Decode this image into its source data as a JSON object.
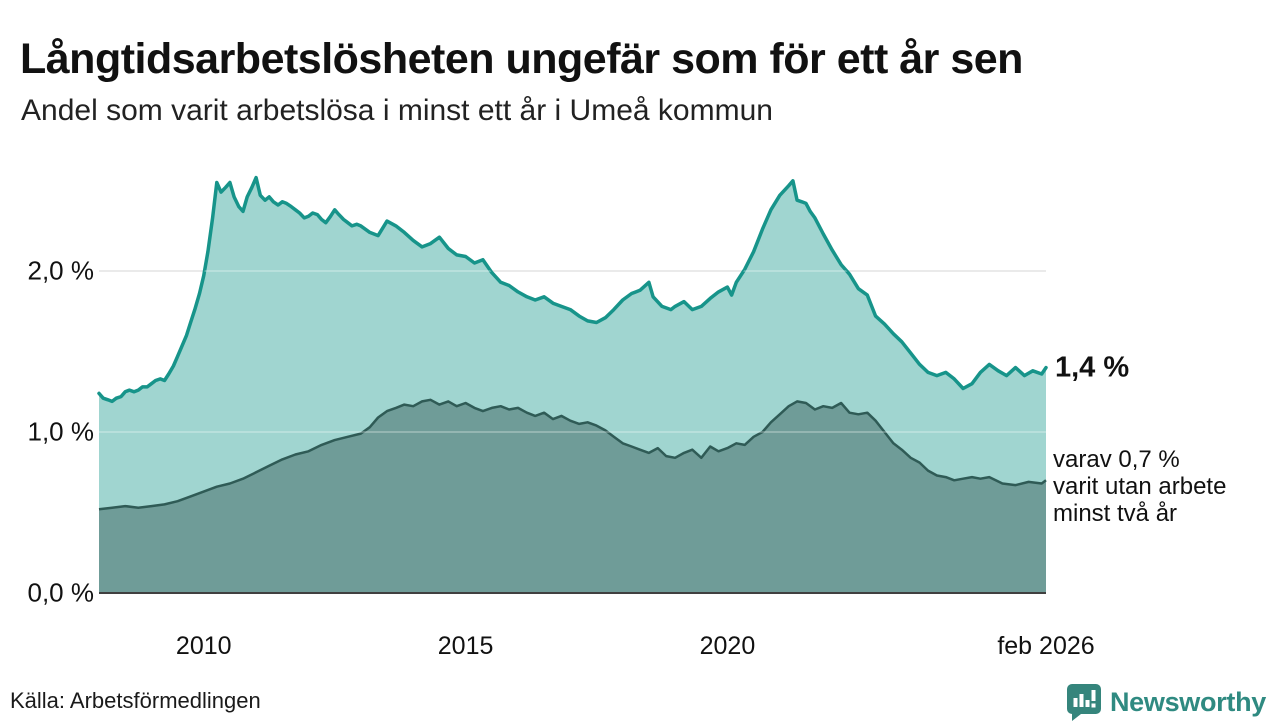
{
  "header": {
    "title": "Långtidsarbetslösheten ungefär som för ett år sen",
    "subtitle": "Andel som varit arbetslösa i minst ett år i Umeå kommun"
  },
  "annotations": {
    "latest_one_year": "1,4 %",
    "secondary": [
      "varav 0,7 %",
      "varit utan arbete",
      "minst två år"
    ]
  },
  "footer": {
    "source": "Källa: Arbetsförmedlingen",
    "brand": "Newsworthy"
  },
  "chart_data": {
    "type": "area",
    "title": "Långtidsarbetslösheten ungefär som för ett år sen",
    "subtitle": "Andel som varit arbetslösa i minst ett år i Umeå kommun",
    "x_domain": [
      2008.0,
      2026.083
    ],
    "ylim": [
      0,
      2.7
    ],
    "grid": "horizontal",
    "x_ticks": [
      {
        "t": 2010,
        "label": "2010"
      },
      {
        "t": 2015,
        "label": "2015"
      },
      {
        "t": 2020,
        "label": "2020"
      },
      {
        "t": 2026.083,
        "label": "feb 2026"
      }
    ],
    "y_ticks": [
      {
        "v": 0,
        "label": "0,0 %"
      },
      {
        "v": 1,
        "label": "1,0 %"
      },
      {
        "v": 2,
        "label": "2,0 %"
      }
    ],
    "colors": {
      "line1": "#17948a",
      "area1": "#a0d5d0",
      "line2": "#2f5b56",
      "area2": "#6f9c98",
      "grid": "#e3e3e3",
      "grid_overlay": "rgba(255,255,255,0.35)",
      "baseline": "#404040",
      "brand": "#2f8a81"
    },
    "series": [
      {
        "name": "arbetslösa minst ett år",
        "latest_label": "1,4 %",
        "points": [
          [
            2008.0,
            1.24
          ],
          [
            2008.08,
            1.21
          ],
          [
            2008.17,
            1.2
          ],
          [
            2008.25,
            1.19
          ],
          [
            2008.33,
            1.21
          ],
          [
            2008.42,
            1.22
          ],
          [
            2008.5,
            1.25
          ],
          [
            2008.58,
            1.26
          ],
          [
            2008.67,
            1.25
          ],
          [
            2008.75,
            1.26
          ],
          [
            2008.83,
            1.28
          ],
          [
            2008.92,
            1.28
          ],
          [
            2009.0,
            1.3
          ],
          [
            2009.08,
            1.32
          ],
          [
            2009.17,
            1.33
          ],
          [
            2009.25,
            1.32
          ],
          [
            2009.33,
            1.36
          ],
          [
            2009.42,
            1.41
          ],
          [
            2009.5,
            1.47
          ],
          [
            2009.58,
            1.53
          ],
          [
            2009.67,
            1.6
          ],
          [
            2009.75,
            1.68
          ],
          [
            2009.83,
            1.76
          ],
          [
            2009.92,
            1.86
          ],
          [
            2010.0,
            1.97
          ],
          [
            2010.08,
            2.12
          ],
          [
            2010.17,
            2.33
          ],
          [
            2010.25,
            2.55
          ],
          [
            2010.33,
            2.49
          ],
          [
            2010.42,
            2.52
          ],
          [
            2010.5,
            2.55
          ],
          [
            2010.58,
            2.46
          ],
          [
            2010.67,
            2.4
          ],
          [
            2010.75,
            2.37
          ],
          [
            2010.83,
            2.46
          ],
          [
            2010.92,
            2.52
          ],
          [
            2011.0,
            2.58
          ],
          [
            2011.08,
            2.47
          ],
          [
            2011.17,
            2.44
          ],
          [
            2011.25,
            2.46
          ],
          [
            2011.33,
            2.43
          ],
          [
            2011.42,
            2.41
          ],
          [
            2011.5,
            2.43
          ],
          [
            2011.58,
            2.42
          ],
          [
            2011.67,
            2.4
          ],
          [
            2011.75,
            2.38
          ],
          [
            2011.83,
            2.36
          ],
          [
            2011.92,
            2.33
          ],
          [
            2012.0,
            2.34
          ],
          [
            2012.08,
            2.36
          ],
          [
            2012.17,
            2.35
          ],
          [
            2012.25,
            2.32
          ],
          [
            2012.33,
            2.3
          ],
          [
            2012.42,
            2.34
          ],
          [
            2012.5,
            2.38
          ],
          [
            2012.58,
            2.35
          ],
          [
            2012.67,
            2.32
          ],
          [
            2012.75,
            2.3
          ],
          [
            2012.83,
            2.28
          ],
          [
            2012.92,
            2.29
          ],
          [
            2013.0,
            2.28
          ],
          [
            2013.17,
            2.24
          ],
          [
            2013.33,
            2.22
          ],
          [
            2013.5,
            2.31
          ],
          [
            2013.67,
            2.28
          ],
          [
            2013.83,
            2.24
          ],
          [
            2014.0,
            2.19
          ],
          [
            2014.17,
            2.15
          ],
          [
            2014.33,
            2.17
          ],
          [
            2014.5,
            2.21
          ],
          [
            2014.67,
            2.14
          ],
          [
            2014.83,
            2.1
          ],
          [
            2015.0,
            2.09
          ],
          [
            2015.17,
            2.05
          ],
          [
            2015.33,
            2.07
          ],
          [
            2015.5,
            1.99
          ],
          [
            2015.67,
            1.93
          ],
          [
            2015.83,
            1.91
          ],
          [
            2016.0,
            1.87
          ],
          [
            2016.17,
            1.84
          ],
          [
            2016.33,
            1.82
          ],
          [
            2016.5,
            1.84
          ],
          [
            2016.67,
            1.8
          ],
          [
            2016.83,
            1.78
          ],
          [
            2017.0,
            1.76
          ],
          [
            2017.17,
            1.72
          ],
          [
            2017.33,
            1.69
          ],
          [
            2017.5,
            1.68
          ],
          [
            2017.67,
            1.71
          ],
          [
            2017.83,
            1.76
          ],
          [
            2018.0,
            1.82
          ],
          [
            2018.17,
            1.86
          ],
          [
            2018.33,
            1.88
          ],
          [
            2018.5,
            1.93
          ],
          [
            2018.58,
            1.84
          ],
          [
            2018.75,
            1.78
          ],
          [
            2018.92,
            1.76
          ],
          [
            2019.0,
            1.78
          ],
          [
            2019.17,
            1.81
          ],
          [
            2019.33,
            1.76
          ],
          [
            2019.5,
            1.78
          ],
          [
            2019.67,
            1.83
          ],
          [
            2019.83,
            1.87
          ],
          [
            2020.0,
            1.9
          ],
          [
            2020.08,
            1.85
          ],
          [
            2020.17,
            1.93
          ],
          [
            2020.33,
            2.01
          ],
          [
            2020.5,
            2.12
          ],
          [
            2020.67,
            2.26
          ],
          [
            2020.83,
            2.38
          ],
          [
            2021.0,
            2.47
          ],
          [
            2021.17,
            2.53
          ],
          [
            2021.25,
            2.56
          ],
          [
            2021.33,
            2.44
          ],
          [
            2021.42,
            2.43
          ],
          [
            2021.5,
            2.42
          ],
          [
            2021.58,
            2.37
          ],
          [
            2021.67,
            2.33
          ],
          [
            2021.83,
            2.23
          ],
          [
            2022.0,
            2.13
          ],
          [
            2022.17,
            2.04
          ],
          [
            2022.33,
            1.98
          ],
          [
            2022.5,
            1.89
          ],
          [
            2022.67,
            1.85
          ],
          [
            2022.83,
            1.72
          ],
          [
            2023.0,
            1.67
          ],
          [
            2023.17,
            1.61
          ],
          [
            2023.33,
            1.56
          ],
          [
            2023.5,
            1.49
          ],
          [
            2023.67,
            1.42
          ],
          [
            2023.83,
            1.37
          ],
          [
            2024.0,
            1.35
          ],
          [
            2024.17,
            1.37
          ],
          [
            2024.33,
            1.33
          ],
          [
            2024.5,
            1.27
          ],
          [
            2024.67,
            1.3
          ],
          [
            2024.83,
            1.37
          ],
          [
            2025.0,
            1.42
          ],
          [
            2025.17,
            1.38
          ],
          [
            2025.33,
            1.35
          ],
          [
            2025.5,
            1.4
          ],
          [
            2025.67,
            1.35
          ],
          [
            2025.83,
            1.38
          ],
          [
            2026.0,
            1.36
          ],
          [
            2026.083,
            1.4
          ]
        ]
      },
      {
        "name": "utan arbete minst två år",
        "latest_label": "0,7 %",
        "points": [
          [
            2008.0,
            0.52
          ],
          [
            2008.25,
            0.53
          ],
          [
            2008.5,
            0.54
          ],
          [
            2008.75,
            0.53
          ],
          [
            2009.0,
            0.54
          ],
          [
            2009.25,
            0.55
          ],
          [
            2009.5,
            0.57
          ],
          [
            2009.75,
            0.6
          ],
          [
            2010.0,
            0.63
          ],
          [
            2010.25,
            0.66
          ],
          [
            2010.5,
            0.68
          ],
          [
            2010.75,
            0.71
          ],
          [
            2011.0,
            0.75
          ],
          [
            2011.25,
            0.79
          ],
          [
            2011.5,
            0.83
          ],
          [
            2011.75,
            0.86
          ],
          [
            2012.0,
            0.88
          ],
          [
            2012.25,
            0.92
          ],
          [
            2012.5,
            0.95
          ],
          [
            2012.75,
            0.97
          ],
          [
            2013.0,
            0.99
          ],
          [
            2013.17,
            1.03
          ],
          [
            2013.33,
            1.09
          ],
          [
            2013.5,
            1.13
          ],
          [
            2013.67,
            1.15
          ],
          [
            2013.83,
            1.17
          ],
          [
            2014.0,
            1.16
          ],
          [
            2014.17,
            1.19
          ],
          [
            2014.33,
            1.2
          ],
          [
            2014.5,
            1.17
          ],
          [
            2014.67,
            1.19
          ],
          [
            2014.83,
            1.16
          ],
          [
            2015.0,
            1.18
          ],
          [
            2015.17,
            1.15
          ],
          [
            2015.33,
            1.13
          ],
          [
            2015.5,
            1.15
          ],
          [
            2015.67,
            1.16
          ],
          [
            2015.83,
            1.14
          ],
          [
            2016.0,
            1.15
          ],
          [
            2016.17,
            1.12
          ],
          [
            2016.33,
            1.1
          ],
          [
            2016.5,
            1.12
          ],
          [
            2016.67,
            1.08
          ],
          [
            2016.83,
            1.1
          ],
          [
            2017.0,
            1.07
          ],
          [
            2017.17,
            1.05
          ],
          [
            2017.33,
            1.06
          ],
          [
            2017.5,
            1.04
          ],
          [
            2017.67,
            1.01
          ],
          [
            2017.83,
            0.97
          ],
          [
            2018.0,
            0.93
          ],
          [
            2018.17,
            0.91
          ],
          [
            2018.33,
            0.89
          ],
          [
            2018.5,
            0.87
          ],
          [
            2018.67,
            0.9
          ],
          [
            2018.83,
            0.85
          ],
          [
            2019.0,
            0.84
          ],
          [
            2019.17,
            0.87
          ],
          [
            2019.33,
            0.89
          ],
          [
            2019.5,
            0.84
          ],
          [
            2019.67,
            0.91
          ],
          [
            2019.83,
            0.88
          ],
          [
            2020.0,
            0.9
          ],
          [
            2020.17,
            0.93
          ],
          [
            2020.33,
            0.92
          ],
          [
            2020.5,
            0.97
          ],
          [
            2020.67,
            1.0
          ],
          [
            2020.83,
            1.06
          ],
          [
            2021.0,
            1.11
          ],
          [
            2021.17,
            1.16
          ],
          [
            2021.33,
            1.19
          ],
          [
            2021.5,
            1.18
          ],
          [
            2021.67,
            1.14
          ],
          [
            2021.83,
            1.16
          ],
          [
            2022.0,
            1.15
          ],
          [
            2022.17,
            1.18
          ],
          [
            2022.33,
            1.12
          ],
          [
            2022.5,
            1.11
          ],
          [
            2022.67,
            1.12
          ],
          [
            2022.83,
            1.07
          ],
          [
            2023.0,
            1.0
          ],
          [
            2023.17,
            0.93
          ],
          [
            2023.33,
            0.89
          ],
          [
            2023.5,
            0.84
          ],
          [
            2023.67,
            0.81
          ],
          [
            2023.83,
            0.76
          ],
          [
            2024.0,
            0.73
          ],
          [
            2024.17,
            0.72
          ],
          [
            2024.33,
            0.7
          ],
          [
            2024.5,
            0.71
          ],
          [
            2024.67,
            0.72
          ],
          [
            2024.83,
            0.71
          ],
          [
            2025.0,
            0.72
          ],
          [
            2025.25,
            0.68
          ],
          [
            2025.5,
            0.67
          ],
          [
            2025.75,
            0.69
          ],
          [
            2026.0,
            0.68
          ],
          [
            2026.083,
            0.7
          ]
        ]
      }
    ]
  }
}
